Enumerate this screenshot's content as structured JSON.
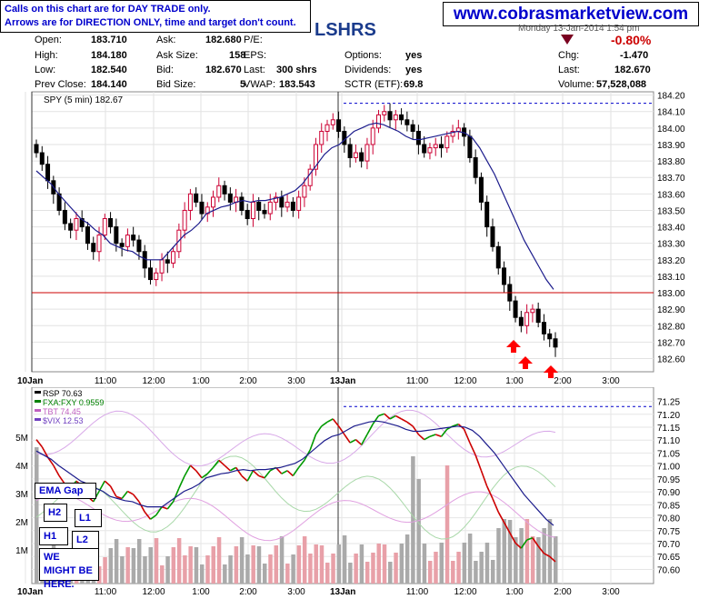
{
  "notice": {
    "line1": "Calls on this chart are for DAY TRADE only.",
    "line2": "Arrows are for DIRECTION ONLY, time and target don't count."
  },
  "website": "www.cobrasmarketview.com",
  "ticker": "LSHRS",
  "date_text": "Monday  13-Jan-2014  1:54 pm",
  "change_pct": "-0.80%",
  "quote": {
    "open_label": "Open:",
    "open": "183.710",
    "high_label": "High:",
    "high": "184.180",
    "low_label": "Low:",
    "low": "182.540",
    "prev_label": "Prev Close:",
    "prev": "184.140",
    "ask_label": "Ask:",
    "ask": "182.680",
    "asksize_label": "Ask Size:",
    "asksize": "158",
    "bid_label": "Bid:",
    "bid": "182.670",
    "bidsize_label": "Bid Size:",
    "bidsize": "5",
    "pe_label": "P/E:",
    "eps_label": "EPS:",
    "last_label": "Last:",
    "last_shrs": "300 shrs",
    "vwap_label": "VWAP:",
    "vwap": "183.543",
    "options_label": "Options:",
    "options": "yes",
    "dividends_label": "Dividends:",
    "dividends": "yes",
    "sctr_label": "SCTR (ETF):",
    "sctr": "69.8",
    "chg_label": "Chg:",
    "chg": "-1.470",
    "last2_label": "Last:",
    "last2": "182.670",
    "volume_label": "Volume:",
    "volume": "57,528,088"
  },
  "colors": {
    "up": "#cc0033",
    "down": "#000000",
    "ema": "#1c1c8c",
    "support": "#008000",
    "resistance": "#0000cc",
    "rsp_up": "#009900",
    "rsp_down": "#cc0000",
    "rsp_flat": "#0000ff",
    "arrow": "#ff0000",
    "volume_up": "#e8a0a8",
    "volume_down": "#aaaaaa",
    "pct_change": "#cc0000"
  },
  "chart_data": [
    {
      "type": "candlestick",
      "legend": "SPY (5 min) 182.67",
      "ylim": [
        182.52,
        184.22
      ],
      "y_ticks": [
        "184.20",
        "184.10",
        "184.00",
        "183.90",
        "183.80",
        "183.70",
        "183.60",
        "183.50",
        "183.40",
        "183.30",
        "183.20",
        "183.10",
        "183.00",
        "182.90",
        "182.80",
        "182.70",
        "182.60"
      ],
      "x_ticks": [
        "10Jan",
        "11:00",
        "12:00",
        "1:00",
        "2:00",
        "3:00",
        "13Jan",
        "11:00",
        "12:00",
        "1:00",
        "2:00",
        "3:00"
      ],
      "support_level": 183.0,
      "resistance_level": 184.15,
      "closes": [
        183.85,
        183.78,
        183.68,
        183.6,
        183.5,
        183.42,
        183.38,
        183.45,
        183.4,
        183.3,
        183.25,
        183.35,
        183.45,
        183.4,
        183.3,
        183.28,
        183.35,
        183.32,
        183.25,
        183.15,
        183.08,
        183.12,
        183.2,
        183.18,
        183.25,
        183.38,
        183.5,
        183.6,
        183.55,
        183.48,
        183.52,
        183.58,
        183.65,
        183.6,
        183.55,
        183.58,
        183.5,
        183.45,
        183.55,
        183.5,
        183.48,
        183.55,
        183.58,
        183.52,
        183.55,
        183.5,
        183.58,
        183.65,
        183.75,
        183.9,
        183.98,
        184.02,
        184.05,
        183.98,
        183.9,
        183.82,
        183.85,
        183.8,
        183.9,
        184.0,
        184.08,
        184.1,
        184.05,
        184.08,
        184.05,
        184.02,
        183.98,
        183.9,
        183.85,
        183.88,
        183.9,
        183.88,
        183.95,
        183.98,
        184.0,
        183.95,
        183.82,
        183.7,
        183.55,
        183.4,
        183.28,
        183.15,
        183.05,
        182.95,
        182.85,
        182.8,
        182.88,
        182.9,
        182.82,
        182.75,
        182.72,
        182.67
      ],
      "ema": [
        183.74,
        183.7,
        183.66,
        183.6,
        183.55,
        183.5,
        183.45,
        183.42,
        183.38,
        183.35,
        183.3,
        183.28,
        183.26,
        183.25,
        183.22,
        183.2,
        183.2,
        183.2,
        183.25,
        183.3,
        183.35,
        183.38,
        183.42,
        183.48,
        183.5,
        183.52,
        183.53,
        183.55,
        183.56,
        183.55,
        183.56,
        183.56,
        183.57,
        183.58,
        183.6,
        183.62,
        183.66,
        183.72,
        183.78,
        183.84,
        183.88,
        183.9,
        183.94,
        183.98,
        184.0,
        184.02,
        184.03,
        184.02,
        184.0,
        183.98,
        183.95,
        183.93,
        183.93,
        183.94,
        183.95,
        183.96,
        183.97,
        183.98,
        183.97,
        183.94,
        183.88,
        183.8,
        183.72,
        183.62,
        183.52,
        183.42,
        183.32,
        183.24,
        183.16,
        183.08,
        183.02
      ]
    },
    {
      "type": "line",
      "legend": [
        "RSP 70.63",
        "FXA:FXY 0.9559",
        "TBT 74.45",
        "$VIX 12.53"
      ],
      "ylim": [
        70.57,
        71.28
      ],
      "y_ticks": [
        "71.25",
        "71.20",
        "71.15",
        "71.10",
        "71.05",
        "71.00",
        "70.95",
        "70.90",
        "70.85",
        "70.80",
        "70.75",
        "70.70",
        "70.65",
        "70.60"
      ],
      "volume_ticks": [
        "5M",
        "4M",
        "3M",
        "2M",
        "1M"
      ],
      "x_ticks": [
        "10Jan",
        "11:00",
        "12:00",
        "1:00",
        "2:00",
        "3:00",
        "13Jan",
        "11:00",
        "12:00",
        "1:00",
        "2:00",
        "3:00"
      ],
      "resistance_level": 71.23
    }
  ],
  "annotations": {
    "ema_gap": "EMA Gap",
    "h2": "H2",
    "l1": "L1",
    "h1": "H1",
    "l2": "L2",
    "might_be_here": "WE MIGHT BE HERE."
  }
}
